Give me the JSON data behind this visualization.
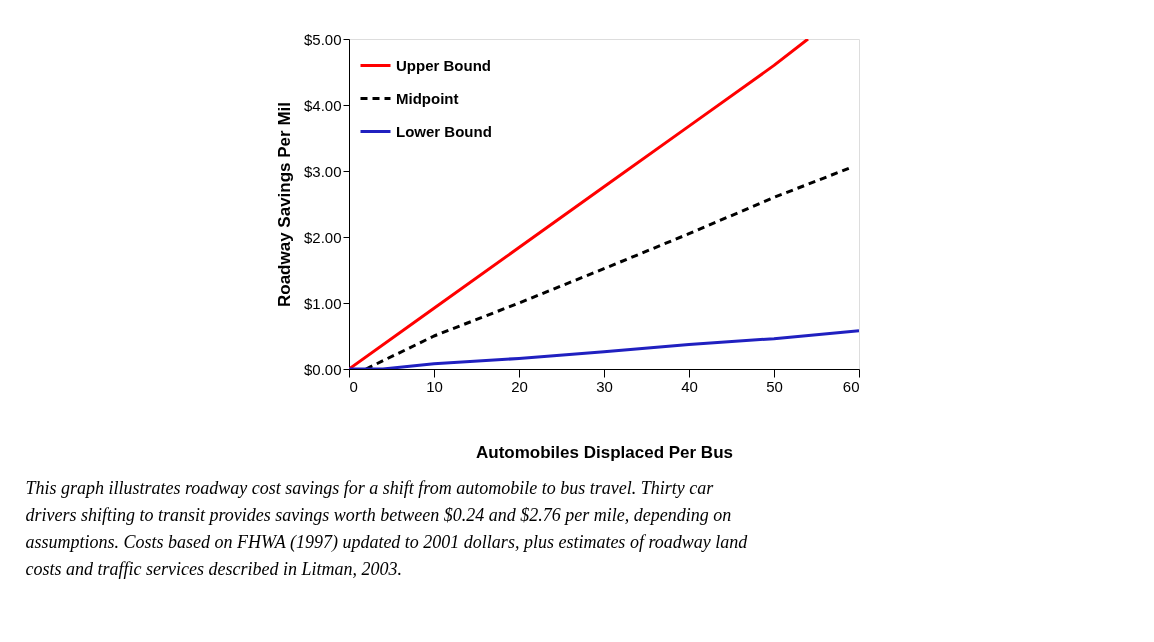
{
  "chart_data": {
    "type": "line",
    "xlabel": "Automobiles Displaced Per Bus",
    "ylabel": "Roadway Savings Per Mil",
    "xlim": [
      0,
      60
    ],
    "xticks": [
      0,
      10,
      20,
      30,
      40,
      50,
      60
    ],
    "ylim": [
      0,
      5
    ],
    "yticks": [
      {
        "value": 0,
        "label": "$0.00"
      },
      {
        "value": 1,
        "label": "$1.00"
      },
      {
        "value": 2,
        "label": "$2.00"
      },
      {
        "value": 3,
        "label": "$3.00"
      },
      {
        "value": 4,
        "label": "$4.00"
      },
      {
        "value": 5,
        "label": "$5.00"
      }
    ],
    "series": [
      {
        "name": "Upper Bound",
        "color": "#ff0000",
        "line_style": "solid",
        "x": [
          0,
          10,
          20,
          30,
          40,
          50,
          54
        ],
        "values": [
          0,
          0.92,
          1.84,
          2.76,
          3.68,
          4.6,
          5.0
        ]
      },
      {
        "name": "Midpoint",
        "color": "#000000",
        "line_style": "dashed",
        "x": [
          2,
          10,
          20,
          30,
          40,
          50,
          59
        ],
        "values": [
          0,
          0.5,
          1.0,
          1.52,
          2.05,
          2.6,
          3.05
        ]
      },
      {
        "name": "Lower Bound",
        "color": "#2020c0",
        "line_style": "solid",
        "x": [
          0,
          4,
          10,
          20,
          30,
          40,
          50,
          60
        ],
        "values": [
          0,
          0,
          0.08,
          0.16,
          0.26,
          0.37,
          0.46,
          0.58
        ]
      }
    ],
    "legend": "top left",
    "grid": false,
    "marker": "none",
    "annotations": [
      "This graph illustrates roadway cost savings for a shift from automobile to bus travel. Thirty car drivers shifting to transit provides savings worth between $0.24 and $2.76 per mile, depending on assumptions. Costs based on FHWA (1997) updated to 2001 dollars, plus estimates of roadway land costs and traffic services described in Litman, 2003."
    ]
  }
}
